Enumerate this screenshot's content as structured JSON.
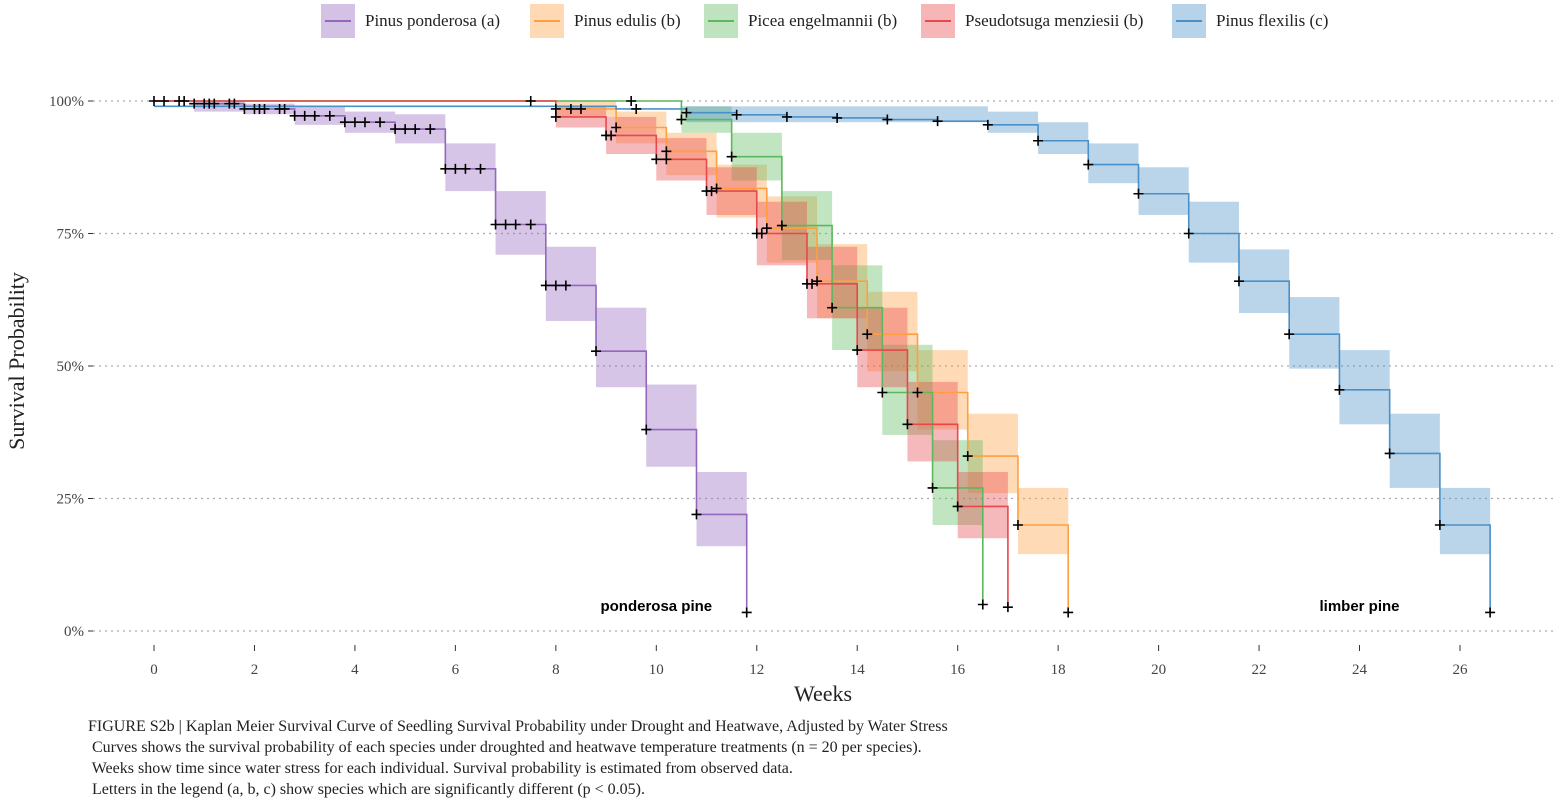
{
  "legend": {
    "items": [
      {
        "label": "Pinus ponderosa (a)",
        "color": "#9467bd"
      },
      {
        "label": "Pinus edulis (b)",
        "color": "#ff9f40"
      },
      {
        "label": "Picea engelmannii (b)",
        "color": "#5cb85c"
      },
      {
        "label": "Pseudotsuga menziesii (b)",
        "color": "#e8474c"
      },
      {
        "label": "Pinus flexilis (c)",
        "color": "#4a90c8"
      }
    ]
  },
  "caption": {
    "line1": "FIGURE S2b | Kaplan Meier Survival Curve of Seedling Survival Probability under Drought and Heatwave, Adjusted by Water Stress",
    "line2": " Curves shows the survival probability of each species under droughted and heatwave temperature treatments (n = 20 per species).",
    "line3": " Weeks show time since water stress for each individual. Survival probability is estimated from observed data.",
    "line4": " Letters in the legend (a, b, c) show species which are significantly different (p < 0.05)."
  },
  "chart_data": {
    "type": "line",
    "subtype": "kaplan-meier step survival curves with confidence bands and censor marks",
    "xlabel": "Weeks",
    "ylabel": "Survival Probability",
    "xlim": [
      -1.5,
      28.2
    ],
    "ylim": [
      -0.02,
      1.05
    ],
    "x_ticks": [
      0,
      2,
      4,
      6,
      8,
      10,
      12,
      14,
      16,
      18,
      20,
      22,
      24,
      26
    ],
    "y_ticks": [
      {
        "value": 0,
        "label": "0%"
      },
      {
        "value": 0.25,
        "label": "25%"
      },
      {
        "value": 0.5,
        "label": "50%"
      },
      {
        "value": 0.75,
        "label": "75%"
      },
      {
        "value": 1.0,
        "label": "100%"
      }
    ],
    "grid": "horizontal dotted at y ticks",
    "legend_position": "top",
    "annotations": [
      {
        "text": "ponderosa pine",
        "x": 10.0,
        "y": 0.047
      },
      {
        "text": "limber pine",
        "x": 24.0,
        "y": 0.047
      }
    ],
    "series": [
      {
        "name": "Pinus ponderosa (a)",
        "color": "#9467bd",
        "steps": [
          [
            0,
            1.0
          ],
          [
            0.8,
            0.995
          ],
          [
            1.8,
            0.985
          ],
          [
            2.8,
            0.972
          ],
          [
            3.8,
            0.96
          ],
          [
            4.8,
            0.947
          ],
          [
            5.8,
            0.872
          ],
          [
            6.8,
            0.767
          ],
          [
            7.8,
            0.652
          ],
          [
            8.8,
            0.528
          ],
          [
            9.8,
            0.38
          ],
          [
            10.8,
            0.22
          ],
          [
            11.8,
            0.035
          ]
        ],
        "ci": [
          [
            0.8,
            0.98,
            1.0
          ],
          [
            1.8,
            0.975,
            0.995
          ],
          [
            2.8,
            0.955,
            0.99
          ],
          [
            3.8,
            0.94,
            0.98
          ],
          [
            4.8,
            0.92,
            0.975
          ],
          [
            5.8,
            0.83,
            0.92
          ],
          [
            6.8,
            0.71,
            0.83
          ],
          [
            7.8,
            0.585,
            0.725
          ],
          [
            8.8,
            0.46,
            0.61
          ],
          [
            9.8,
            0.31,
            0.465
          ],
          [
            10.8,
            0.16,
            0.3
          ]
        ],
        "censor": [
          0,
          0.2,
          0.5,
          0.6,
          0.8,
          1.0,
          1.1,
          1.2,
          1.5,
          1.6,
          1.8,
          2.0,
          2.1,
          2.2,
          2.5,
          2.6,
          2.8,
          3.0,
          3.2,
          3.5,
          3.8,
          4.0,
          4.2,
          4.5,
          4.8,
          5.0,
          5.2,
          5.5,
          5.8,
          6.0,
          6.2,
          6.5,
          6.8,
          7.0,
          7.2,
          7.5,
          7.8,
          8.0,
          8.2,
          8.8,
          9.8,
          10.8,
          11.8
        ]
      },
      {
        "name": "Pinus edulis (b)",
        "color": "#ff9f40",
        "steps": [
          [
            0,
            1.0
          ],
          [
            8.0,
            0.985
          ],
          [
            9.2,
            0.95
          ],
          [
            10.2,
            0.905
          ],
          [
            11.2,
            0.835
          ],
          [
            12.2,
            0.76
          ],
          [
            13.2,
            0.66
          ],
          [
            14.2,
            0.56
          ],
          [
            15.2,
            0.45
          ],
          [
            16.2,
            0.33
          ],
          [
            17.2,
            0.2
          ],
          [
            18.2,
            0.035
          ]
        ],
        "ci": [
          [
            8.0,
            0.97,
            1.0
          ],
          [
            9.2,
            0.92,
            0.98
          ],
          [
            10.2,
            0.86,
            0.94
          ],
          [
            11.2,
            0.78,
            0.88
          ],
          [
            12.2,
            0.695,
            0.82
          ],
          [
            13.2,
            0.59,
            0.73
          ],
          [
            14.2,
            0.49,
            0.64
          ],
          [
            15.2,
            0.38,
            0.53
          ],
          [
            16.2,
            0.26,
            0.41
          ],
          [
            17.2,
            0.145,
            0.27
          ]
        ],
        "censor": [
          8.0,
          8.3,
          8.5,
          9.2,
          10.2,
          11.2,
          12.2,
          13.2,
          14.2,
          15.2,
          16.2,
          17.2,
          18.2
        ]
      },
      {
        "name": "Picea engelmannii (b)",
        "color": "#5cb85c",
        "steps": [
          [
            0,
            1.0
          ],
          [
            10.5,
            0.965
          ],
          [
            11.5,
            0.895
          ],
          [
            12.5,
            0.765
          ],
          [
            13.5,
            0.61
          ],
          [
            14.5,
            0.45
          ],
          [
            15.5,
            0.27
          ],
          [
            16.5,
            0.05
          ]
        ],
        "ci": [
          [
            10.5,
            0.94,
            0.99
          ],
          [
            11.5,
            0.85,
            0.94
          ],
          [
            12.5,
            0.7,
            0.83
          ],
          [
            13.5,
            0.53,
            0.69
          ],
          [
            14.5,
            0.37,
            0.54
          ],
          [
            15.5,
            0.2,
            0.36
          ]
        ],
        "censor": [
          9.5,
          10.5,
          11.5,
          12.5,
          13.5,
          14.5,
          15.5,
          16.5
        ]
      },
      {
        "name": "Pseudotsuga menziesii (b)",
        "color": "#e8474c",
        "steps": [
          [
            0,
            1.0
          ],
          [
            8.0,
            0.97
          ],
          [
            9.0,
            0.935
          ],
          [
            10.0,
            0.89
          ],
          [
            11.0,
            0.83
          ],
          [
            12.0,
            0.75
          ],
          [
            13.0,
            0.655
          ],
          [
            14.0,
            0.53
          ],
          [
            15.0,
            0.39
          ],
          [
            16.0,
            0.235
          ],
          [
            17.0,
            0.045
          ]
        ],
        "ci": [
          [
            8.0,
            0.95,
            0.99
          ],
          [
            9.0,
            0.9,
            0.97
          ],
          [
            10.0,
            0.85,
            0.93
          ],
          [
            11.0,
            0.785,
            0.875
          ],
          [
            12.0,
            0.69,
            0.81
          ],
          [
            13.0,
            0.59,
            0.725
          ],
          [
            14.0,
            0.46,
            0.61
          ],
          [
            15.0,
            0.32,
            0.47
          ],
          [
            16.0,
            0.175,
            0.3
          ]
        ],
        "censor": [
          7.5,
          8.0,
          9.0,
          9.1,
          10.0,
          10.2,
          11.0,
          11.1,
          12.0,
          12.1,
          13.0,
          13.1,
          14.0,
          15.0,
          16.0,
          17.0
        ]
      },
      {
        "name": "Pinus flexilis (c)",
        "color": "#4a90c8",
        "steps": [
          [
            0,
            0.99
          ],
          [
            9.2,
            0.985
          ],
          [
            10.6,
            0.978
          ],
          [
            11.6,
            0.974
          ],
          [
            12.6,
            0.97
          ],
          [
            13.6,
            0.968
          ],
          [
            14.6,
            0.965
          ],
          [
            15.6,
            0.962
          ],
          [
            16.6,
            0.955
          ],
          [
            17.6,
            0.925
          ],
          [
            18.6,
            0.88
          ],
          [
            19.6,
            0.825
          ],
          [
            20.6,
            0.75
          ],
          [
            21.6,
            0.66
          ],
          [
            22.6,
            0.56
          ],
          [
            23.6,
            0.455
          ],
          [
            24.6,
            0.335
          ],
          [
            25.6,
            0.2
          ],
          [
            26.6,
            0.035
          ]
        ],
        "ci": [
          [
            10.6,
            0.96,
            0.99
          ],
          [
            16.6,
            0.94,
            0.98
          ],
          [
            17.6,
            0.9,
            0.96
          ],
          [
            18.6,
            0.845,
            0.92
          ],
          [
            19.6,
            0.785,
            0.875
          ],
          [
            20.6,
            0.695,
            0.81
          ],
          [
            21.6,
            0.6,
            0.72
          ],
          [
            22.6,
            0.495,
            0.63
          ],
          [
            23.6,
            0.39,
            0.53
          ],
          [
            24.6,
            0.27,
            0.41
          ],
          [
            25.6,
            0.145,
            0.27
          ]
        ],
        "censor": [
          9.6,
          10.6,
          11.6,
          12.6,
          13.6,
          14.6,
          15.6,
          16.6,
          17.6,
          18.6,
          19.6,
          20.6,
          21.6,
          22.6,
          23.6,
          24.6,
          25.6,
          26.6
        ]
      }
    ]
  }
}
